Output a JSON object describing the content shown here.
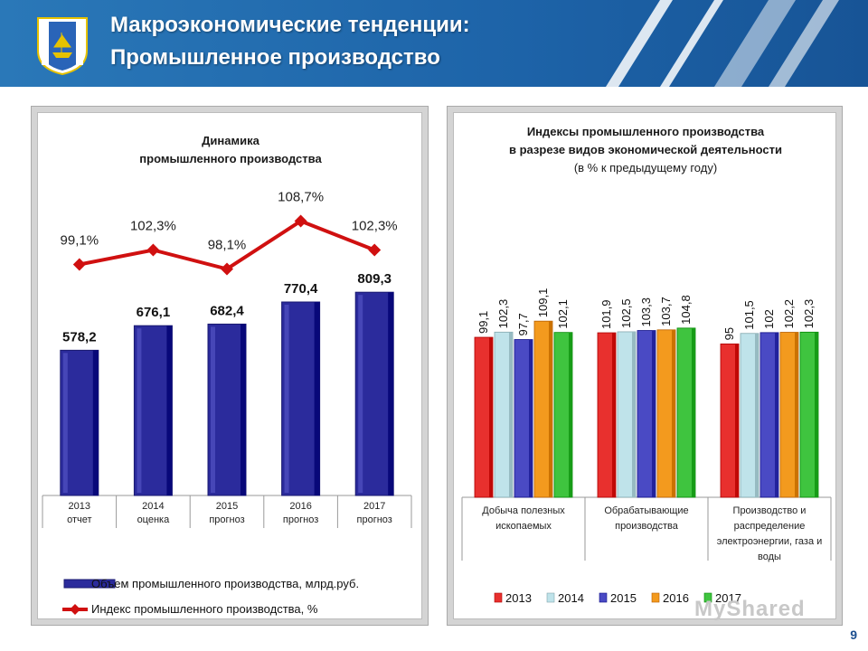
{
  "header": {
    "title_line1": "Макроэкономические тенденции:",
    "title_line2": "Промышленное производство"
  },
  "page_number": "9",
  "watermark": "MyShared",
  "left_chart_title_line1": "Динамика",
  "left_chart_title_line2": "промышленного производства",
  "right_chart_title_line1": "Индексы промышленного производства",
  "right_chart_title_line2": "в разрезе видов экономической деятельности",
  "right_chart_subtitle": "(в % к предыдущему году)",
  "colors": {
    "bar_blue": "#2b2b9c",
    "line_red": "#d01010",
    "s2013": "#e8302e",
    "s2014": "#bfe3ea",
    "s2015": "#4a4ac4",
    "s2016": "#f39a1e",
    "s2017": "#3fc43f"
  },
  "chart_data": [
    {
      "type": "bar",
      "categories": [
        [
          "2013",
          "отчет"
        ],
        [
          "2014",
          "оценка"
        ],
        [
          "2015",
          "прогноз"
        ],
        [
          "2016",
          "прогноз"
        ],
        [
          "2017",
          "прогноз"
        ]
      ],
      "series": [
        {
          "name": "Объем промышленного производства, млрд.руб.",
          "values": [
            578.2,
            676.1,
            682.4,
            770.4,
            809.3
          ],
          "labels": [
            "578,2",
            "676,1",
            "682,4",
            "770,4",
            "809,3"
          ]
        },
        {
          "name": "Индекс промышленного производства, %",
          "type": "line",
          "values": [
            99.1,
            102.3,
            98.1,
            108.7,
            102.3
          ],
          "labels": [
            "99,1%",
            "102,3%",
            "98,1%",
            "108,7%",
            "102,3%"
          ]
        }
      ],
      "title": "Динамика промышленного производства",
      "legend": "bottom"
    },
    {
      "type": "bar",
      "categories": [
        [
          "Добыча полезных",
          "ископаемых"
        ],
        [
          "Обрабатывающие",
          "производства"
        ],
        [
          "Производство и",
          "распределение",
          "электроэнергии, газа и",
          "воды"
        ]
      ],
      "series": [
        {
          "name": "2013",
          "values": [
            99.1,
            101.9,
            95
          ],
          "labels": [
            "99,1",
            "101,9",
            "95"
          ]
        },
        {
          "name": "2014",
          "values": [
            102.3,
            102.5,
            101.5
          ],
          "labels": [
            "102,3",
            "102,5",
            "101,5"
          ]
        },
        {
          "name": "2015",
          "values": [
            97.7,
            103.3,
            102
          ],
          "labels": [
            "97,7",
            "103,3",
            "102"
          ]
        },
        {
          "name": "2016",
          "values": [
            109.1,
            103.7,
            102.2
          ],
          "labels": [
            "109,1",
            "103,7",
            "102,2"
          ]
        },
        {
          "name": "2017",
          "values": [
            102.1,
            104.8,
            102.3
          ],
          "labels": [
            "102,1",
            "104,8",
            "102,3"
          ]
        }
      ],
      "title": "Индексы промышленного производства в разрезе видов экономической деятельности",
      "subtitle": "(в % к предыдущему году)",
      "legend": "bottom"
    }
  ]
}
